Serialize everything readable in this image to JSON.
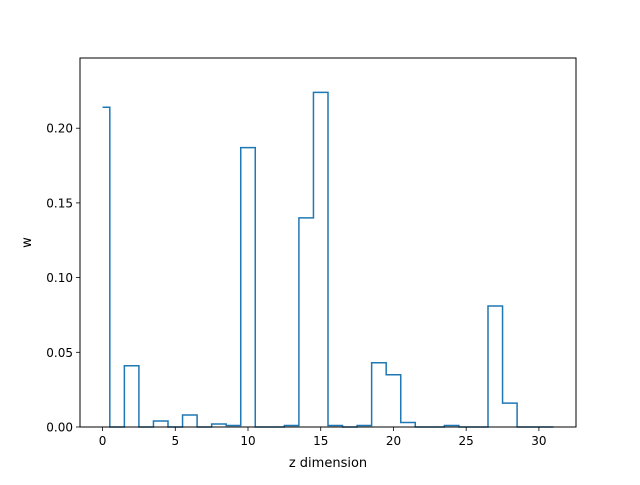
{
  "chart_data": {
    "type": "step",
    "title": "",
    "xlabel": "z dimension",
    "ylabel": "w",
    "xlim": [
      -1.55,
      32.55
    ],
    "ylim": [
      0.0,
      0.247
    ],
    "xticks": [
      0,
      5,
      10,
      15,
      20,
      25,
      30
    ],
    "yticks": [
      0.0,
      0.05,
      0.1,
      0.15,
      0.2
    ],
    "xtick_labels": [
      "0",
      "5",
      "10",
      "15",
      "20",
      "25",
      "30"
    ],
    "ytick_labels": [
      "0.00",
      "0.05",
      "0.10",
      "0.15",
      "0.20"
    ],
    "grid": false,
    "line_color": "#1f77b4",
    "step_where": "mid",
    "x": [
      0,
      1,
      2,
      3,
      4,
      5,
      6,
      7,
      8,
      9,
      10,
      11,
      12,
      13,
      14,
      15,
      16,
      17,
      18,
      19,
      20,
      21,
      22,
      23,
      24,
      25,
      26,
      27,
      28,
      29,
      30,
      31
    ],
    "values": [
      0.214,
      0.0,
      0.041,
      0.0,
      0.004,
      0.0,
      0.008,
      0.0,
      0.002,
      0.001,
      0.187,
      0.0,
      0.0,
      0.001,
      0.14,
      0.224,
      0.001,
      0.0,
      0.001,
      0.043,
      0.035,
      0.003,
      0.0,
      0.0,
      0.001,
      0.0,
      0.0,
      0.081,
      0.016,
      0.0,
      0.0,
      0.0
    ]
  }
}
